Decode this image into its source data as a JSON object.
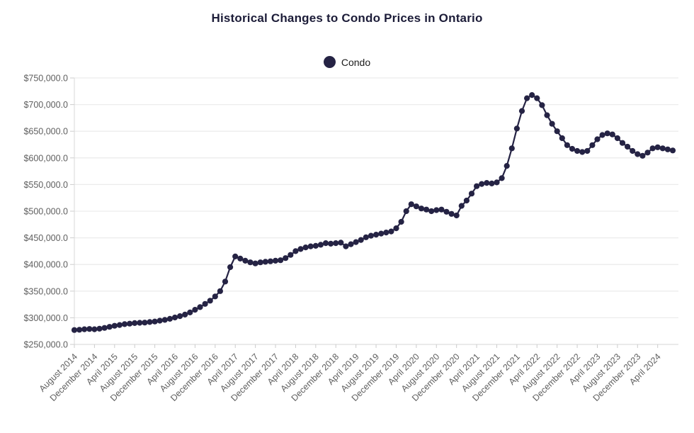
{
  "chart_data": {
    "type": "line",
    "title": "Historical Changes to Condo Prices in Ontario",
    "legend": [
      {
        "name": "Condo",
        "color": "#252344"
      }
    ],
    "legend_position": "top-center",
    "grid": "horizontal",
    "ylim": [
      250000,
      750000
    ],
    "y_tick_step": 50000,
    "y_tick_labels": [
      "$750,000.0",
      "$700,000.0",
      "$650,000.0",
      "$600,000.0",
      "$550,000.0",
      "$500,000.0",
      "$450,000.0",
      "$400,000.0",
      "$350,000.0",
      "$300,000.0",
      "$250,000.0"
    ],
    "x_tick_labels": [
      "August 2014",
      "December 2014",
      "April 2015",
      "August 2015",
      "December 2015",
      "April 2016",
      "August 2016",
      "December 2016",
      "April 2017",
      "August 2017",
      "December 2017",
      "April 2018",
      "August 2018",
      "December 2018",
      "April 2019",
      "August 2019",
      "December 2019",
      "April 2020",
      "August 2020",
      "December 2020",
      "April 2021",
      "August 2021",
      "December 2021",
      "April 2022",
      "August 2022",
      "December 2022",
      "April 2023",
      "August 2023",
      "December 2023",
      "April 2024"
    ],
    "x_tick_every_n_points": 4,
    "series": [
      {
        "name": "Condo",
        "x": [
          "2014-08",
          "2014-09",
          "2014-10",
          "2014-11",
          "2014-12",
          "2015-01",
          "2015-02",
          "2015-03",
          "2015-04",
          "2015-05",
          "2015-06",
          "2015-07",
          "2015-08",
          "2015-09",
          "2015-10",
          "2015-11",
          "2015-12",
          "2016-01",
          "2016-02",
          "2016-03",
          "2016-04",
          "2016-05",
          "2016-06",
          "2016-07",
          "2016-08",
          "2016-09",
          "2016-10",
          "2016-11",
          "2016-12",
          "2017-01",
          "2017-02",
          "2017-03",
          "2017-04",
          "2017-05",
          "2017-06",
          "2017-07",
          "2017-08",
          "2017-09",
          "2017-10",
          "2017-11",
          "2017-12",
          "2018-01",
          "2018-02",
          "2018-03",
          "2018-04",
          "2018-05",
          "2018-06",
          "2018-07",
          "2018-08",
          "2018-09",
          "2018-10",
          "2018-11",
          "2018-12",
          "2019-01",
          "2019-02",
          "2019-03",
          "2019-04",
          "2019-05",
          "2019-06",
          "2019-07",
          "2019-08",
          "2019-09",
          "2019-10",
          "2019-11",
          "2019-12",
          "2020-01",
          "2020-02",
          "2020-03",
          "2020-04",
          "2020-05",
          "2020-06",
          "2020-07",
          "2020-08",
          "2020-09",
          "2020-10",
          "2020-11",
          "2020-12",
          "2021-01",
          "2021-02",
          "2021-03",
          "2021-04",
          "2021-05",
          "2021-06",
          "2021-07",
          "2021-08",
          "2021-09",
          "2021-10",
          "2021-11",
          "2021-12",
          "2022-01",
          "2022-02",
          "2022-03",
          "2022-04",
          "2022-05",
          "2022-06",
          "2022-07",
          "2022-08",
          "2022-09",
          "2022-10",
          "2022-11",
          "2022-12",
          "2023-01",
          "2023-02",
          "2023-03",
          "2023-04",
          "2023-05",
          "2023-06",
          "2023-07",
          "2023-08",
          "2023-09",
          "2023-10",
          "2023-11",
          "2023-12",
          "2024-01",
          "2024-02",
          "2024-03",
          "2024-04",
          "2024-05",
          "2024-06",
          "2024-07"
        ],
        "values": [
          277000,
          277500,
          278500,
          279000,
          278500,
          279500,
          281000,
          283000,
          285000,
          286500,
          288000,
          289000,
          290000,
          290500,
          291000,
          292000,
          293000,
          294500,
          296000,
          298000,
          300500,
          303000,
          306000,
          310000,
          315000,
          320000,
          326000,
          332000,
          340000,
          350000,
          368000,
          395000,
          415000,
          411000,
          407000,
          404000,
          402000,
          404000,
          405000,
          406000,
          407000,
          408000,
          412000,
          418000,
          425000,
          429000,
          432000,
          434000,
          435000,
          437000,
          440000,
          439000,
          440000,
          441000,
          434000,
          438000,
          442000,
          446000,
          451000,
          454000,
          456000,
          458000,
          460000,
          462000,
          468000,
          480000,
          500000,
          513000,
          509000,
          505000,
          503000,
          500000,
          502000,
          503000,
          499000,
          495000,
          492000,
          510000,
          520000,
          533000,
          547000,
          551000,
          553000,
          552000,
          554000,
          562000,
          585000,
          618000,
          655000,
          688000,
          712000,
          718000,
          712000,
          699000,
          680000,
          664000,
          650000,
          637000,
          624000,
          617000,
          613000,
          611000,
          613000,
          624000,
          635000,
          643000,
          646000,
          644000,
          637000,
          628000,
          621000,
          613000,
          607000,
          604000,
          610000,
          618000,
          620000,
          618000,
          616000,
          614000
        ]
      }
    ],
    "style": {
      "series_color": "#252344",
      "grid_color": "#ececec",
      "axis_line_color": "#d9d9d9",
      "tick_mark_color": "#cccccc",
      "axis_text_color": "#5f5f5f",
      "title_color": "#1c1c38"
    }
  }
}
